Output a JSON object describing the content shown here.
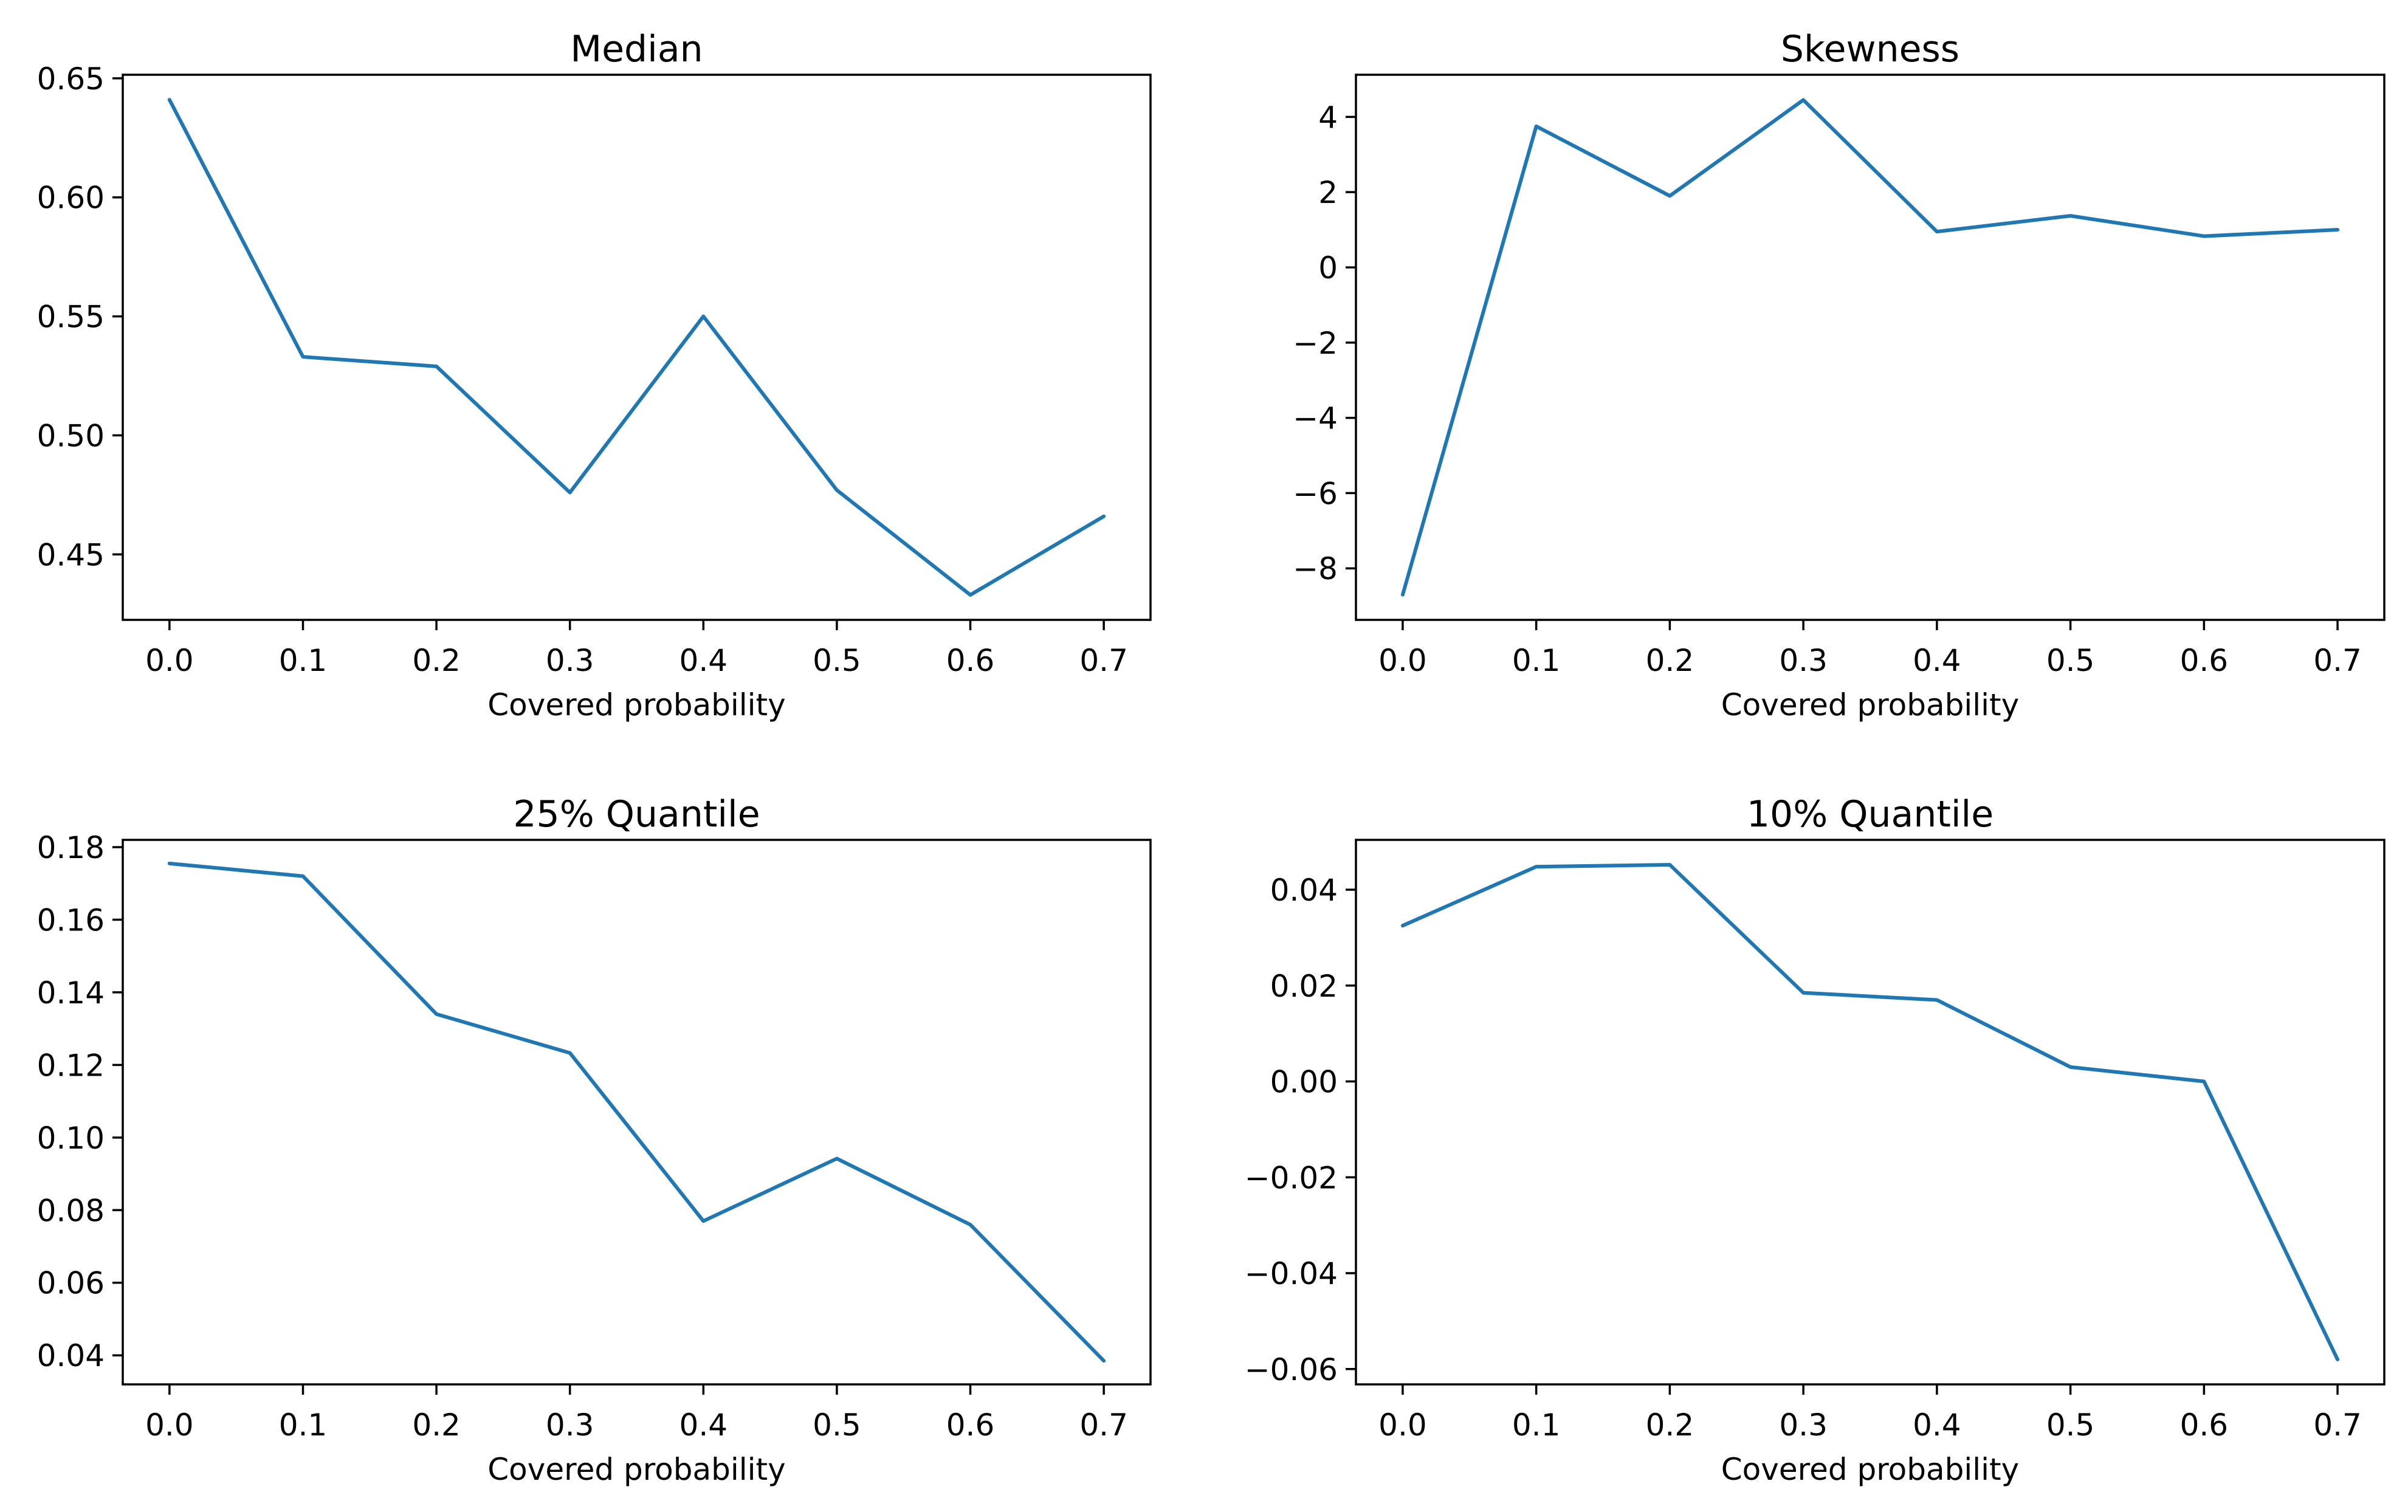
{
  "chart_data": [
    {
      "type": "line",
      "title": "Median",
      "xlabel": "Covered probability",
      "ylabel": "",
      "x": [
        0.0,
        0.1,
        0.2,
        0.3,
        0.4,
        0.5,
        0.6,
        0.7
      ],
      "series": [
        {
          "values": [
            0.641,
            0.533,
            0.529,
            0.476,
            0.55,
            0.477,
            0.433,
            0.466
          ]
        }
      ],
      "xlim": [
        -0.035,
        0.735
      ],
      "ylim": [
        0.4225,
        0.6515
      ],
      "xticks": [
        0.0,
        0.1,
        0.2,
        0.3,
        0.4,
        0.5,
        0.6,
        0.7
      ],
      "xtick_labels": [
        "0.0",
        "0.1",
        "0.2",
        "0.3",
        "0.4",
        "0.5",
        "0.6",
        "0.7"
      ],
      "yticks": [
        0.45,
        0.5,
        0.55,
        0.6,
        0.65
      ],
      "ytick_labels": [
        "0.45",
        "0.50",
        "0.55",
        "0.60",
        "0.65"
      ],
      "grid": false,
      "color": "#1f77b4"
    },
    {
      "type": "line",
      "title": "Skewness",
      "xlabel": "Covered probability",
      "ylabel": "",
      "x": [
        0.0,
        0.1,
        0.2,
        0.3,
        0.4,
        0.5,
        0.6,
        0.7
      ],
      "series": [
        {
          "values": [
            -8.7,
            3.75,
            1.9,
            4.45,
            0.95,
            1.37,
            0.83,
            1.0
          ]
        }
      ],
      "xlim": [
        -0.035,
        0.735
      ],
      "ylim": [
        -9.37,
        5.12
      ],
      "xticks": [
        0.0,
        0.1,
        0.2,
        0.3,
        0.4,
        0.5,
        0.6,
        0.7
      ],
      "xtick_labels": [
        "0.0",
        "0.1",
        "0.2",
        "0.3",
        "0.4",
        "0.5",
        "0.6",
        "0.7"
      ],
      "yticks": [
        -8,
        -6,
        -4,
        -2,
        0,
        2,
        4
      ],
      "ytick_labels": [
        "−8",
        "−6",
        "−4",
        "−2",
        "0",
        "2",
        "4"
      ],
      "grid": false,
      "color": "#1f77b4"
    },
    {
      "type": "line",
      "title": "25% Quantile",
      "xlabel": "Covered probability",
      "ylabel": "",
      "x": [
        0.0,
        0.1,
        0.2,
        0.3,
        0.4,
        0.5,
        0.6,
        0.7
      ],
      "series": [
        {
          "values": [
            0.1755,
            0.172,
            0.134,
            0.1233,
            0.077,
            0.0942,
            0.076,
            0.0385
          ]
        }
      ],
      "xlim": [
        -0.035,
        0.735
      ],
      "ylim": [
        0.032,
        0.182
      ],
      "xticks": [
        0.0,
        0.1,
        0.2,
        0.3,
        0.4,
        0.5,
        0.6,
        0.7
      ],
      "xtick_labels": [
        "0.0",
        "0.1",
        "0.2",
        "0.3",
        "0.4",
        "0.5",
        "0.6",
        "0.7"
      ],
      "yticks": [
        0.04,
        0.06,
        0.08,
        0.1,
        0.12,
        0.14,
        0.16,
        0.18
      ],
      "ytick_labels": [
        "0.04",
        "0.06",
        "0.08",
        "0.10",
        "0.12",
        "0.14",
        "0.16",
        "0.18"
      ],
      "grid": false,
      "color": "#1f77b4"
    },
    {
      "type": "line",
      "title": "10% Quantile",
      "xlabel": "Covered probability",
      "ylabel": "",
      "x": [
        0.0,
        0.1,
        0.2,
        0.3,
        0.4,
        0.5,
        0.6,
        0.7
      ],
      "series": [
        {
          "values": [
            0.0325,
            0.0448,
            0.0452,
            0.0185,
            0.017,
            0.003,
            0.0,
            -0.058
          ]
        }
      ],
      "xlim": [
        -0.035,
        0.735
      ],
      "ylim": [
        -0.0632,
        0.0504
      ],
      "xticks": [
        0.0,
        0.1,
        0.2,
        0.3,
        0.4,
        0.5,
        0.6,
        0.7
      ],
      "xtick_labels": [
        "0.0",
        "0.1",
        "0.2",
        "0.3",
        "0.4",
        "0.5",
        "0.6",
        "0.7"
      ],
      "yticks": [
        -0.06,
        -0.04,
        -0.02,
        0.0,
        0.02,
        0.04
      ],
      "ytick_labels": [
        "−0.06",
        "−0.04",
        "−0.02",
        "0.00",
        "0.02",
        "0.04"
      ],
      "grid": false,
      "color": "#1f77b4"
    }
  ]
}
